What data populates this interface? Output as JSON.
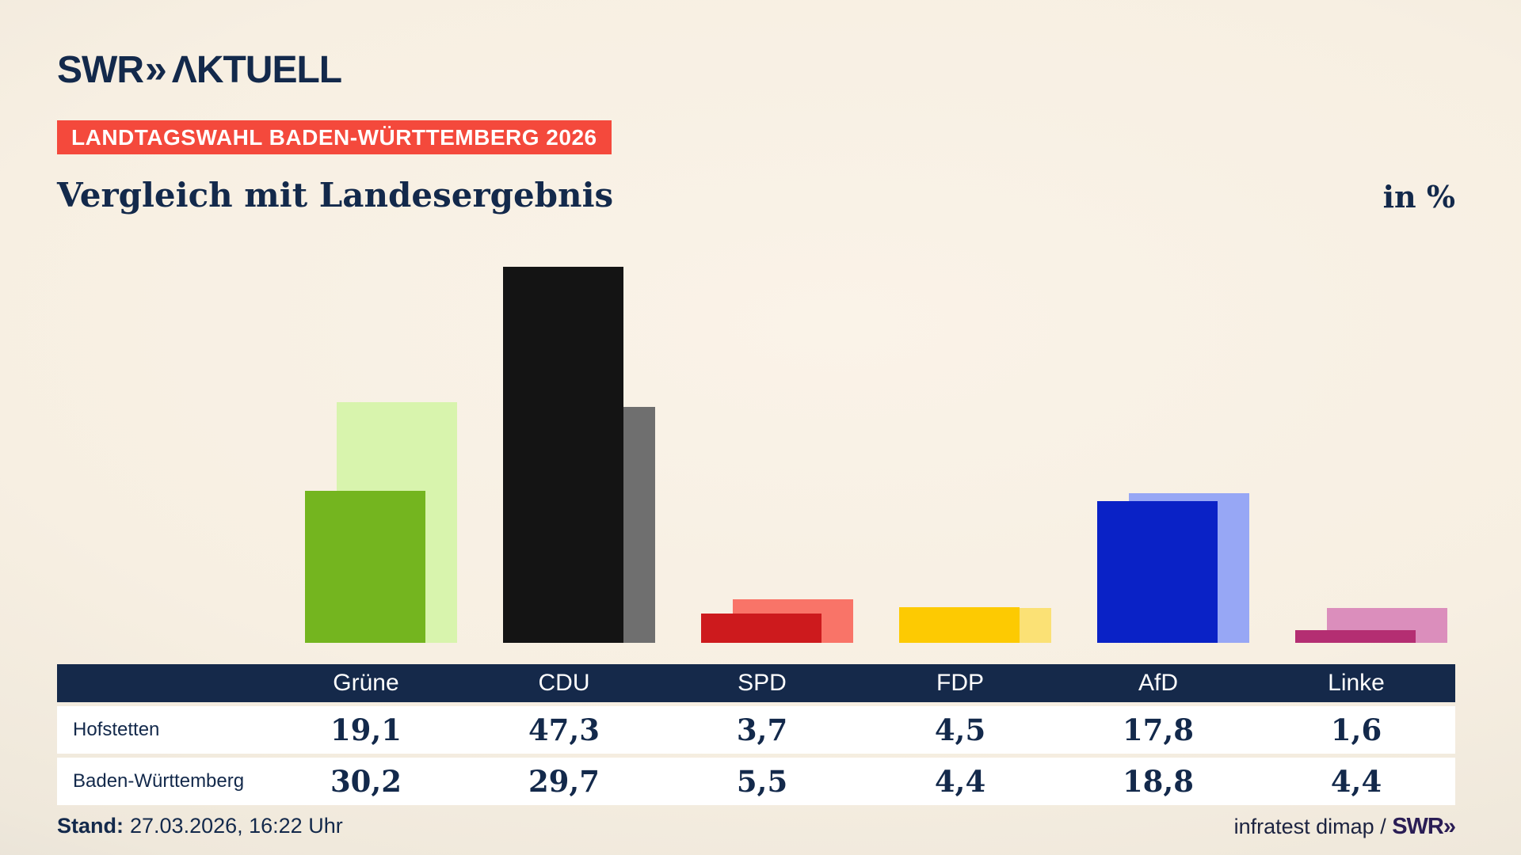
{
  "header": {
    "logo_swr": "SWR",
    "logo_chevrons": "»",
    "logo_aktuell": "ΛKTUELL",
    "badge": "LANDTAGSWAHL BADEN-WÜRTTEMBERG 2026",
    "title": "Vergleich mit Landesergebnis",
    "unit_label": "in %"
  },
  "chart_data": {
    "type": "bar",
    "categories": [
      "Grüne",
      "CDU",
      "SPD",
      "FDP",
      "AfD",
      "Linke"
    ],
    "series": [
      {
        "name": "Hofstetten",
        "values": [
          19.1,
          47.3,
          3.7,
          4.5,
          17.8,
          1.6
        ]
      },
      {
        "name": "Baden-Württemberg",
        "values": [
          30.2,
          29.7,
          5.5,
          4.4,
          18.8,
          4.4
        ]
      }
    ],
    "unit": "%",
    "ylim": [
      0,
      50
    ],
    "grid": false,
    "legend_position": "table-rows-below-chart",
    "colors": {
      "hofstetten": [
        "#74b51f",
        "#141414",
        "#cd1a1d",
        "#fdca02",
        "#0a22c6",
        "#b42e72"
      ],
      "land": [
        "#d8f4ad",
        "#6f6f6f",
        "#f97468",
        "#fbe175",
        "#97a7f5",
        "#db8ebc"
      ]
    }
  },
  "table": {
    "columns": [
      "Grüne",
      "CDU",
      "SPD",
      "FDP",
      "AfD",
      "Linke"
    ],
    "rows": [
      {
        "label": "Hofstetten",
        "values": [
          "19,1",
          "47,3",
          "3,7",
          "4,5",
          "17,8",
          "1,6"
        ]
      },
      {
        "label": "Baden-Württemberg",
        "values": [
          "30,2",
          "29,7",
          "5,5",
          "4,4",
          "18,8",
          "4,4"
        ]
      }
    ]
  },
  "footer": {
    "stand_label": "Stand:",
    "stand_value": "27.03.2026, 16:22 Uhr",
    "source_text": "infratest dimap / ",
    "source_logo": "SWR»"
  },
  "theme_colors": {
    "background_center": "#faf3e8",
    "background_edge": "#d6d3cd",
    "navy_text": "#13294b",
    "badge_red": "#f4493c",
    "table_header_navy": "#15294a",
    "row_white": "#ffffff",
    "footer_logo_purple": "#2a1d55"
  }
}
